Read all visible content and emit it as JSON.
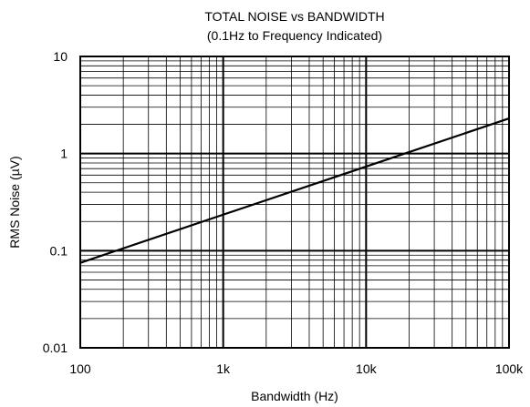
{
  "chart_data": {
    "type": "line",
    "title": "TOTAL NOISE vs BANDWIDTH",
    "subtitle": "(0.1Hz to Frequency Indicated)",
    "xlabel": "Bandwidth (Hz)",
    "ylabel": "RMS Noise (µV)",
    "x_scale": "log",
    "y_scale": "log",
    "xlim": [
      100,
      100000
    ],
    "ylim": [
      0.01,
      10
    ],
    "x_ticks": [
      {
        "value": 100,
        "label": "100"
      },
      {
        "value": 1000,
        "label": "1k"
      },
      {
        "value": 10000,
        "label": "10k"
      },
      {
        "value": 100000,
        "label": "100k"
      }
    ],
    "y_ticks": [
      {
        "value": 0.01,
        "label": "0.01"
      },
      {
        "value": 0.1,
        "label": "0.1"
      },
      {
        "value": 1,
        "label": "1"
      },
      {
        "value": 10,
        "label": "10"
      }
    ],
    "grid": true,
    "series": [
      {
        "x": [
          100,
          1000,
          10000,
          100000
        ],
        "y": [
          0.075,
          0.235,
          0.735,
          2.3
        ]
      }
    ],
    "colors": {
      "line": "#000000",
      "grid": "#000000",
      "background": "#ffffff"
    }
  }
}
